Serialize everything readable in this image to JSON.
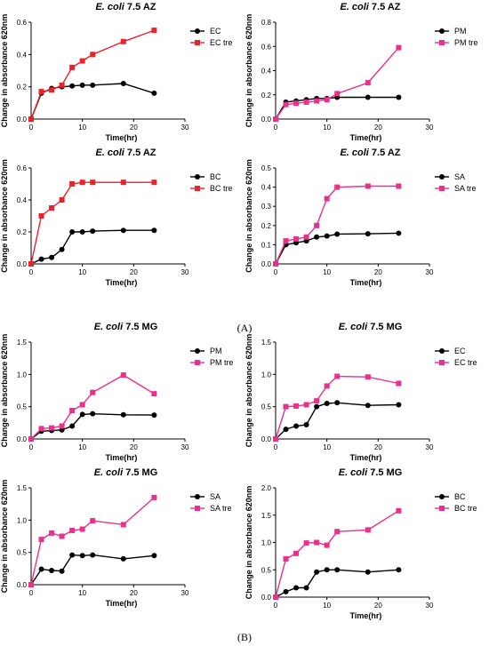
{
  "panel_labels": [
    "(A)",
    "(B)"
  ],
  "chart_data": [
    {
      "type": "line",
      "title_species": "E. coli",
      "title_suffix": " 7.5 AZ",
      "xlabel": "Time(hr)",
      "ylabel": "Change in absorbance 620nm",
      "xlim": [
        0,
        30
      ],
      "ylim": [
        0,
        0.6
      ],
      "xticks": [
        0,
        10,
        20,
        30
      ],
      "yticks": [
        "0.0",
        "0.2",
        "0.4",
        "0.6"
      ],
      "ytick_values": [
        0,
        0.2,
        0.4,
        0.6
      ],
      "legend_position": "right",
      "series": [
        {
          "name": "EC",
          "marker": "circle",
          "color": "#000000",
          "x": [
            0,
            2,
            4,
            6,
            8,
            10,
            12,
            18,
            24
          ],
          "y": [
            0.0,
            0.16,
            0.19,
            0.2,
            0.205,
            0.21,
            0.21,
            0.22,
            0.16
          ]
        },
        {
          "name": "EC tre",
          "marker": "square",
          "color": "#e8232a",
          "x": [
            0,
            2,
            4,
            6,
            8,
            10,
            12,
            18,
            24
          ],
          "y": [
            0.0,
            0.17,
            0.18,
            0.21,
            0.32,
            0.36,
            0.4,
            0.48,
            0.55
          ]
        }
      ]
    },
    {
      "type": "line",
      "title_species": "E. coli",
      "title_suffix": " 7.5 AZ",
      "xlabel": "Time(hr)",
      "ylabel": "Change in absorbance 620nm",
      "xlim": [
        0,
        30
      ],
      "ylim": [
        0,
        0.8
      ],
      "xticks": [
        0,
        10,
        20,
        30
      ],
      "yticks": [
        "0.0",
        "0.2",
        "0.4",
        "0.6",
        "0.8"
      ],
      "ytick_values": [
        0,
        0.2,
        0.4,
        0.6,
        0.8
      ],
      "legend_position": "right",
      "series": [
        {
          "name": "PM",
          "marker": "circle",
          "color": "#000000",
          "x": [
            0,
            2,
            4,
            6,
            8,
            10,
            12,
            18,
            24
          ],
          "y": [
            0.0,
            0.14,
            0.15,
            0.16,
            0.17,
            0.17,
            0.18,
            0.18,
            0.18
          ]
        },
        {
          "name": "PM tre",
          "marker": "square",
          "color": "#ea2f8c",
          "x": [
            0,
            2,
            4,
            6,
            8,
            10,
            12,
            18,
            24
          ],
          "y": [
            0.0,
            0.12,
            0.13,
            0.14,
            0.15,
            0.16,
            0.21,
            0.3,
            0.59
          ]
        }
      ]
    },
    {
      "type": "line",
      "title_species": "E. coli",
      "title_suffix": " 7.5 AZ",
      "xlabel": "Time(hr)",
      "ylabel": "Change in absorbance 620nm",
      "xlim": [
        0,
        30
      ],
      "ylim": [
        0,
        0.6
      ],
      "xticks": [
        0,
        10,
        20,
        30
      ],
      "yticks": [
        "0.0",
        "0.2",
        "0.4",
        "0.6"
      ],
      "ytick_values": [
        0,
        0.2,
        0.4,
        0.6
      ],
      "legend_position": "right",
      "series": [
        {
          "name": "BC",
          "marker": "circle",
          "color": "#000000",
          "x": [
            0,
            2,
            4,
            6,
            8,
            10,
            12,
            18,
            24
          ],
          "y": [
            0.0,
            0.03,
            0.04,
            0.09,
            0.2,
            0.2,
            0.205,
            0.21,
            0.21
          ]
        },
        {
          "name": "BC tre",
          "marker": "square",
          "color": "#e8232a",
          "x": [
            0,
            2,
            4,
            6,
            8,
            10,
            12,
            18,
            24
          ],
          "y": [
            0.0,
            0.3,
            0.35,
            0.4,
            0.5,
            0.51,
            0.51,
            0.51,
            0.51
          ]
        }
      ]
    },
    {
      "type": "line",
      "title_species": "E. coli",
      "title_suffix": " 7.5 AZ",
      "xlabel": "Time(hr)",
      "ylabel": "Change in absorbance 620nm",
      "xlim": [
        0,
        30
      ],
      "ylim": [
        0,
        0.5
      ],
      "xticks": [
        0,
        10,
        20,
        30
      ],
      "yticks": [
        "0.0",
        "0.1",
        "0.2",
        "0.3",
        "0.4",
        "0.5"
      ],
      "ytick_values": [
        0,
        0.1,
        0.2,
        0.3,
        0.4,
        0.5
      ],
      "legend_position": "right",
      "series": [
        {
          "name": "SA",
          "marker": "circle",
          "color": "#000000",
          "x": [
            0,
            2,
            4,
            6,
            8,
            10,
            12,
            18,
            24
          ],
          "y": [
            0.0,
            0.1,
            0.11,
            0.12,
            0.14,
            0.145,
            0.155,
            0.157,
            0.16
          ]
        },
        {
          "name": "SA tre",
          "marker": "square",
          "color": "#ea2f8c",
          "x": [
            0,
            2,
            4,
            6,
            8,
            10,
            12,
            18,
            24
          ],
          "y": [
            0.0,
            0.12,
            0.13,
            0.14,
            0.2,
            0.34,
            0.4,
            0.405,
            0.405
          ]
        }
      ]
    },
    {
      "type": "line",
      "title_species": "E. coli",
      "title_suffix": " 7.5 MG",
      "xlabel": "Time(hr)",
      "ylabel": "Change in absorbance 620nm",
      "xlim": [
        0,
        30
      ],
      "ylim": [
        0,
        1.5
      ],
      "xticks": [
        0,
        10,
        20,
        30
      ],
      "yticks": [
        "0.0",
        "0.5",
        "1.0",
        "1.5"
      ],
      "ytick_values": [
        0,
        0.5,
        1.0,
        1.5
      ],
      "legend_position": "right",
      "series": [
        {
          "name": "PM",
          "marker": "circle",
          "color": "#000000",
          "x": [
            0,
            2,
            4,
            6,
            8,
            10,
            12,
            18,
            24
          ],
          "y": [
            0.0,
            0.12,
            0.13,
            0.14,
            0.2,
            0.38,
            0.39,
            0.375,
            0.37
          ]
        },
        {
          "name": "PM tre",
          "marker": "square",
          "color": "#ea2f8c",
          "x": [
            0,
            2,
            4,
            6,
            8,
            10,
            12,
            18,
            24
          ],
          "y": [
            0.0,
            0.16,
            0.17,
            0.2,
            0.44,
            0.53,
            0.72,
            0.99,
            0.7
          ]
        }
      ]
    },
    {
      "type": "line",
      "title_species": "E. coli",
      "title_suffix": " 7.5 MG",
      "xlabel": "Time(hr)",
      "ylabel": "Change in absorbance 620nm",
      "xlim": [
        0,
        30
      ],
      "ylim": [
        0,
        1.5
      ],
      "xticks": [
        0,
        10,
        20,
        30
      ],
      "yticks": [
        "0.0",
        "0.5",
        "1.0",
        "1.5"
      ],
      "ytick_values": [
        0,
        0.5,
        1.0,
        1.5
      ],
      "legend_position": "right",
      "series": [
        {
          "name": "EC",
          "marker": "circle",
          "color": "#000000",
          "x": [
            0,
            2,
            4,
            6,
            8,
            10,
            12,
            18,
            24
          ],
          "y": [
            0.0,
            0.15,
            0.2,
            0.22,
            0.5,
            0.55,
            0.56,
            0.52,
            0.53
          ]
        },
        {
          "name": "EC tre",
          "marker": "square",
          "color": "#ea2f8c",
          "x": [
            0,
            2,
            4,
            6,
            8,
            10,
            12,
            18,
            24
          ],
          "y": [
            0.0,
            0.5,
            0.51,
            0.53,
            0.59,
            0.82,
            0.97,
            0.96,
            0.86
          ]
        }
      ]
    },
    {
      "type": "line",
      "title_species": "E. coli",
      "title_suffix": " 7.5 MG",
      "xlabel": "Time(hr)",
      "ylabel": "Change in absorbance 620nm",
      "xlim": [
        0,
        30
      ],
      "ylim": [
        0,
        1.5
      ],
      "xticks": [
        0,
        10,
        20,
        30
      ],
      "yticks": [
        "0.0",
        "0.5",
        "1.0",
        "1.5"
      ],
      "ytick_values": [
        0,
        0.5,
        1.0,
        1.5
      ],
      "legend_position": "right",
      "series": [
        {
          "name": "SA",
          "marker": "circle",
          "color": "#000000",
          "x": [
            0,
            2,
            4,
            6,
            8,
            10,
            12,
            18,
            24
          ],
          "y": [
            0.0,
            0.24,
            0.22,
            0.21,
            0.46,
            0.45,
            0.46,
            0.4,
            0.45
          ]
        },
        {
          "name": "SA tre",
          "marker": "square",
          "color": "#ea2f8c",
          "x": [
            0,
            2,
            4,
            6,
            8,
            10,
            12,
            18,
            24
          ],
          "y": [
            0.0,
            0.7,
            0.8,
            0.75,
            0.84,
            0.86,
            0.99,
            0.93,
            1.35
          ]
        }
      ]
    },
    {
      "type": "line",
      "title_species": "E. coli",
      "title_suffix": " 7.5 MG",
      "xlabel": "Time(hr)",
      "ylabel": "Change in absorbance 620nm",
      "xlim": [
        0,
        30
      ],
      "ylim": [
        0,
        2.0
      ],
      "xticks": [
        0,
        10,
        20,
        30
      ],
      "yticks": [
        "0.0",
        "0.5",
        "1.0",
        "1.5",
        "2.0"
      ],
      "ytick_values": [
        0,
        0.5,
        1.0,
        1.5,
        2.0
      ],
      "legend_position": "right",
      "series": [
        {
          "name": "BC",
          "marker": "circle",
          "color": "#000000",
          "x": [
            0,
            2,
            4,
            6,
            8,
            10,
            12,
            18,
            24
          ],
          "y": [
            0.0,
            0.1,
            0.17,
            0.17,
            0.46,
            0.5,
            0.5,
            0.46,
            0.5
          ]
        },
        {
          "name": "BC tre",
          "marker": "square",
          "color": "#ea2f8c",
          "x": [
            0,
            2,
            4,
            6,
            8,
            10,
            12,
            18,
            24
          ],
          "y": [
            0.0,
            0.7,
            0.8,
            0.99,
            1.0,
            0.95,
            1.2,
            1.23,
            1.58
          ]
        }
      ]
    }
  ]
}
